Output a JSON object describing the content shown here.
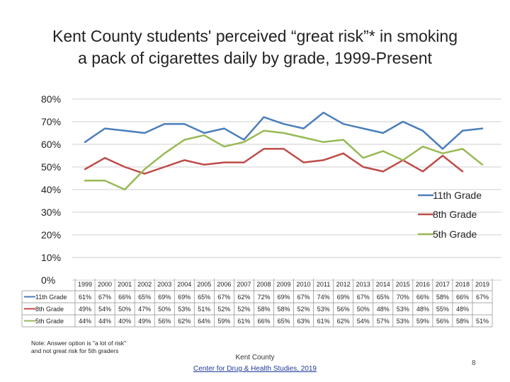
{
  "slide": {
    "title_line1": "Kent County students' perceived “great risk”* in smoking",
    "title_line2": "a pack of cigarettes daily by grade, 1999-Present",
    "note_line1": "Note: Answer option is \"a lot of risk\"",
    "note_line2": "and not great risk for 5th graders",
    "source_line1": "Kent County",
    "source_line2": "Center for Drug & Health Studies, 2019",
    "page_number": "8"
  },
  "chart_data": {
    "type": "line",
    "title": "Kent County students' perceived “great risk”* in smoking a pack of cigarettes daily by grade, 1999-Present",
    "categories": [
      "1999",
      "2000",
      "2001",
      "2002",
      "2003",
      "2004",
      "2005",
      "2006",
      "2007",
      "2008",
      "2009",
      "2010",
      "2011",
      "2012",
      "2013",
      "2014",
      "2015",
      "2016",
      "2017",
      "2018",
      "2019"
    ],
    "y_tick_labels": [
      "0%",
      "10%",
      "20%",
      "30%",
      "40%",
      "50%",
      "60%",
      "70%",
      "80%"
    ],
    "ylim": [
      0,
      80
    ],
    "grid": true,
    "legend_position": "right",
    "series": [
      {
        "name": "11th Grade",
        "color": "#4a7ebb",
        "values": [
          61,
          67,
          66,
          65,
          69,
          69,
          65,
          67,
          62,
          72,
          69,
          67,
          74,
          69,
          67,
          65,
          70,
          66,
          58,
          66,
          67
        ],
        "labels": [
          "61%",
          "67%",
          "66%",
          "65%",
          "69%",
          "69%",
          "65%",
          "67%",
          "62%",
          "72%",
          "69%",
          "67%",
          "74%",
          "69%",
          "67%",
          "65%",
          "70%",
          "66%",
          "58%",
          "66%",
          "67%"
        ]
      },
      {
        "name": "8th Grade",
        "color": "#be4b48",
        "values": [
          49,
          54,
          50,
          47,
          50,
          53,
          51,
          52,
          52,
          58,
          58,
          52,
          53,
          56,
          50,
          48,
          53,
          48,
          55,
          48,
          null
        ],
        "labels": [
          "49%",
          "54%",
          "50%",
          "47%",
          "50%",
          "53%",
          "51%",
          "52%",
          "52%",
          "58%",
          "58%",
          "52%",
          "53%",
          "56%",
          "50%",
          "48%",
          "53%",
          "48%",
          "55%",
          "48%",
          ""
        ]
      },
      {
        "name": "5th Grade",
        "color": "#98b954",
        "values": [
          44,
          44,
          40,
          49,
          56,
          62,
          64,
          59,
          61,
          66,
          65,
          63,
          61,
          62,
          54,
          57,
          53,
          59,
          56,
          58,
          51
        ],
        "labels": [
          "44%",
          "44%",
          "40%",
          "49%",
          "56%",
          "62%",
          "64%",
          "59%",
          "61%",
          "66%",
          "65%",
          "63%",
          "61%",
          "62%",
          "54%",
          "57%",
          "53%",
          "59%",
          "56%",
          "58%",
          "51%"
        ]
      }
    ]
  }
}
